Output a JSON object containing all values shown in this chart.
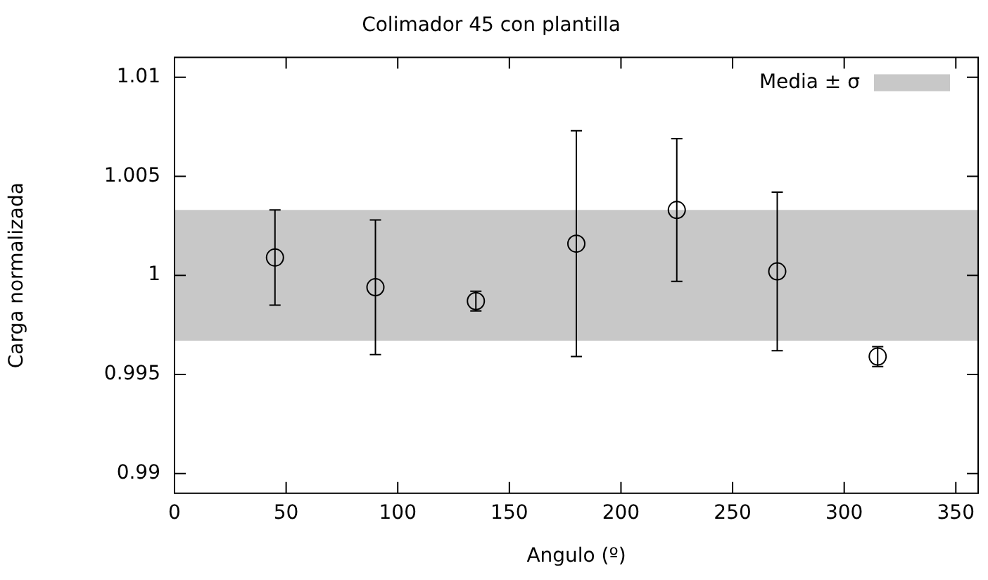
{
  "chart_data": {
    "type": "scatter",
    "title": "Colimador 45 con plantilla",
    "xlabel": "Angulo (º)",
    "ylabel": "Carga normalizada",
    "x": [
      45,
      90,
      135,
      180,
      225,
      270,
      315
    ],
    "series": [
      {
        "color": "#000000",
        "values": [
          1.0009,
          0.9994,
          0.9987,
          1.0016,
          1.0033,
          1.0002,
          0.9959
        ],
        "errors": [
          0.0024,
          0.0034,
          0.0005,
          0.0057,
          0.0036,
          0.004,
          0.0005
        ]
      }
    ],
    "bands": [
      {
        "axis": "y",
        "from": 0.9967,
        "to": 1.0033,
        "label": "Media ± σ",
        "color": "#c8c8c8"
      }
    ],
    "xlim": [
      0,
      360
    ],
    "xticks": [
      0,
      50,
      100,
      150,
      200,
      250,
      300,
      350
    ],
    "ylim": [
      0.989,
      1.011
    ],
    "yticks": [
      0.99,
      0.995,
      1,
      1.005,
      1.01
    ],
    "marker": "circle",
    "grid": false,
    "legend": "top right"
  }
}
